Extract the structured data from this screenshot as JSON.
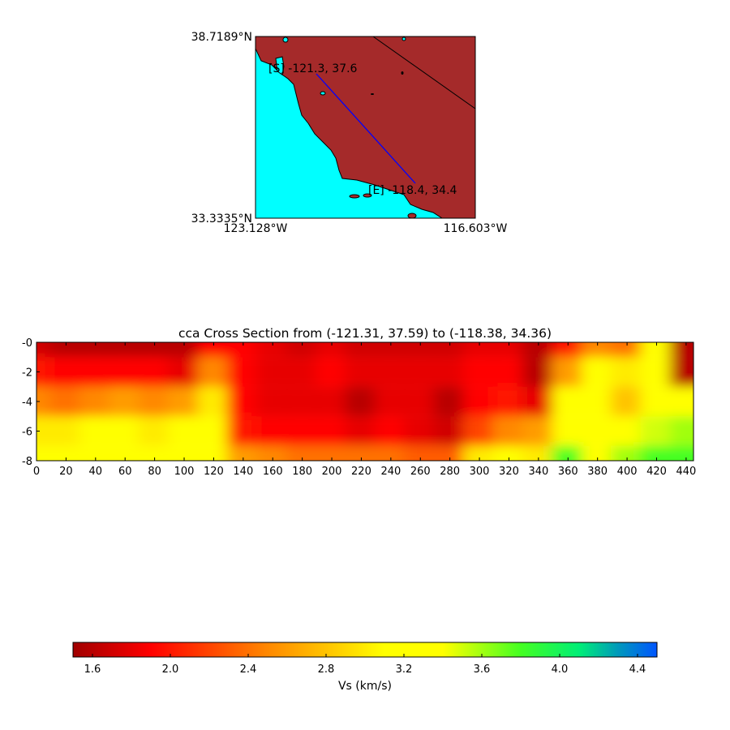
{
  "chart_data": [
    {
      "type": "map",
      "lat_labels": [
        "38.7189°N",
        "33.3335°N"
      ],
      "lon_labels": [
        "123.128°W",
        "116.603°W"
      ],
      "lat_range": [
        33.3335,
        38.7189
      ],
      "lon_range": [
        -123.128,
        -116.603
      ],
      "start_label": "[S] -121.3, 37.6",
      "end_label": "[E] -118.4, 34.4",
      "start_point": [
        -121.31,
        37.59
      ],
      "end_point": [
        -118.38,
        34.36
      ],
      "colors": {
        "land": "#a52a2a",
        "water": "#00ffff",
        "profile_line": "#0000ff"
      }
    },
    {
      "type": "heatmap",
      "title": "cca Cross Section from (-121.31, 37.59) to (-118.38, 34.36)",
      "xlim": [
        0,
        445
      ],
      "ylim": [
        -8,
        0
      ],
      "x_ticks": [
        "0",
        "20",
        "40",
        "60",
        "80",
        "100",
        "120",
        "140",
        "160",
        "180",
        "200",
        "220",
        "240",
        "260",
        "280",
        "300",
        "320",
        "340",
        "360",
        "380",
        "400",
        "420",
        "440"
      ],
      "y_ticks": [
        "-0",
        "-2",
        "-4",
        "-6",
        "-8"
      ],
      "x": [
        0,
        20,
        40,
        60,
        80,
        100,
        120,
        140,
        160,
        180,
        200,
        220,
        240,
        260,
        280,
        300,
        320,
        340,
        360,
        380,
        400,
        420,
        440
      ],
      "depths": [
        0,
        -2,
        -4,
        -6,
        -8
      ],
      "values": [
        [
          1.7,
          2.0,
          2.5,
          3.0,
          3.3
        ],
        [
          1.6,
          1.9,
          2.4,
          3.0,
          3.3
        ],
        [
          1.6,
          1.9,
          2.5,
          3.1,
          3.4
        ],
        [
          1.6,
          1.9,
          2.6,
          3.2,
          3.4
        ],
        [
          1.6,
          1.9,
          2.5,
          3.0,
          3.3
        ],
        [
          1.6,
          1.8,
          2.6,
          3.1,
          3.3
        ],
        [
          1.9,
          2.5,
          3.0,
          3.2,
          3.4
        ],
        [
          1.9,
          1.9,
          1.9,
          2.0,
          2.6
        ],
        [
          1.8,
          1.8,
          1.8,
          1.9,
          2.5
        ],
        [
          1.7,
          1.8,
          1.8,
          1.9,
          2.4
        ],
        [
          1.8,
          1.9,
          1.8,
          1.9,
          2.4
        ],
        [
          1.7,
          1.8,
          1.6,
          1.8,
          2.4
        ],
        [
          1.7,
          1.8,
          1.8,
          1.9,
          2.4
        ],
        [
          1.7,
          1.8,
          1.8,
          1.8,
          2.3
        ],
        [
          1.7,
          1.8,
          1.6,
          1.7,
          2.3
        ],
        [
          1.8,
          1.9,
          1.9,
          2.2,
          3.0
        ],
        [
          1.8,
          1.9,
          2.0,
          2.5,
          3.3
        ],
        [
          1.6,
          1.6,
          1.8,
          2.6,
          3.0
        ],
        [
          2.0,
          2.6,
          3.2,
          3.4,
          3.8
        ],
        [
          2.5,
          3.1,
          3.2,
          3.3,
          3.3
        ],
        [
          2.4,
          3.0,
          2.8,
          3.1,
          3.6
        ],
        [
          3.2,
          3.2,
          3.3,
          3.5,
          3.8
        ],
        [
          1.6,
          1.6,
          3.2,
          3.6,
          3.8
        ]
      ]
    },
    {
      "type": "colorbar",
      "label": "Vs (km/s)",
      "range": [
        1.5,
        4.5
      ],
      "ticks": [
        "1.6",
        "2.0",
        "2.4",
        "2.8",
        "3.2",
        "3.6",
        "4.0",
        "4.4"
      ],
      "colormap": [
        [
          1.5,
          "#a00000"
        ],
        [
          1.9,
          "#ff0000"
        ],
        [
          2.5,
          "#ff8800"
        ],
        [
          3.1,
          "#ffff00"
        ],
        [
          3.4,
          "#ffff00"
        ],
        [
          3.8,
          "#44ff22"
        ],
        [
          4.1,
          "#00ee77"
        ],
        [
          4.3,
          "#0099bb"
        ],
        [
          4.5,
          "#0055ff"
        ]
      ]
    }
  ]
}
